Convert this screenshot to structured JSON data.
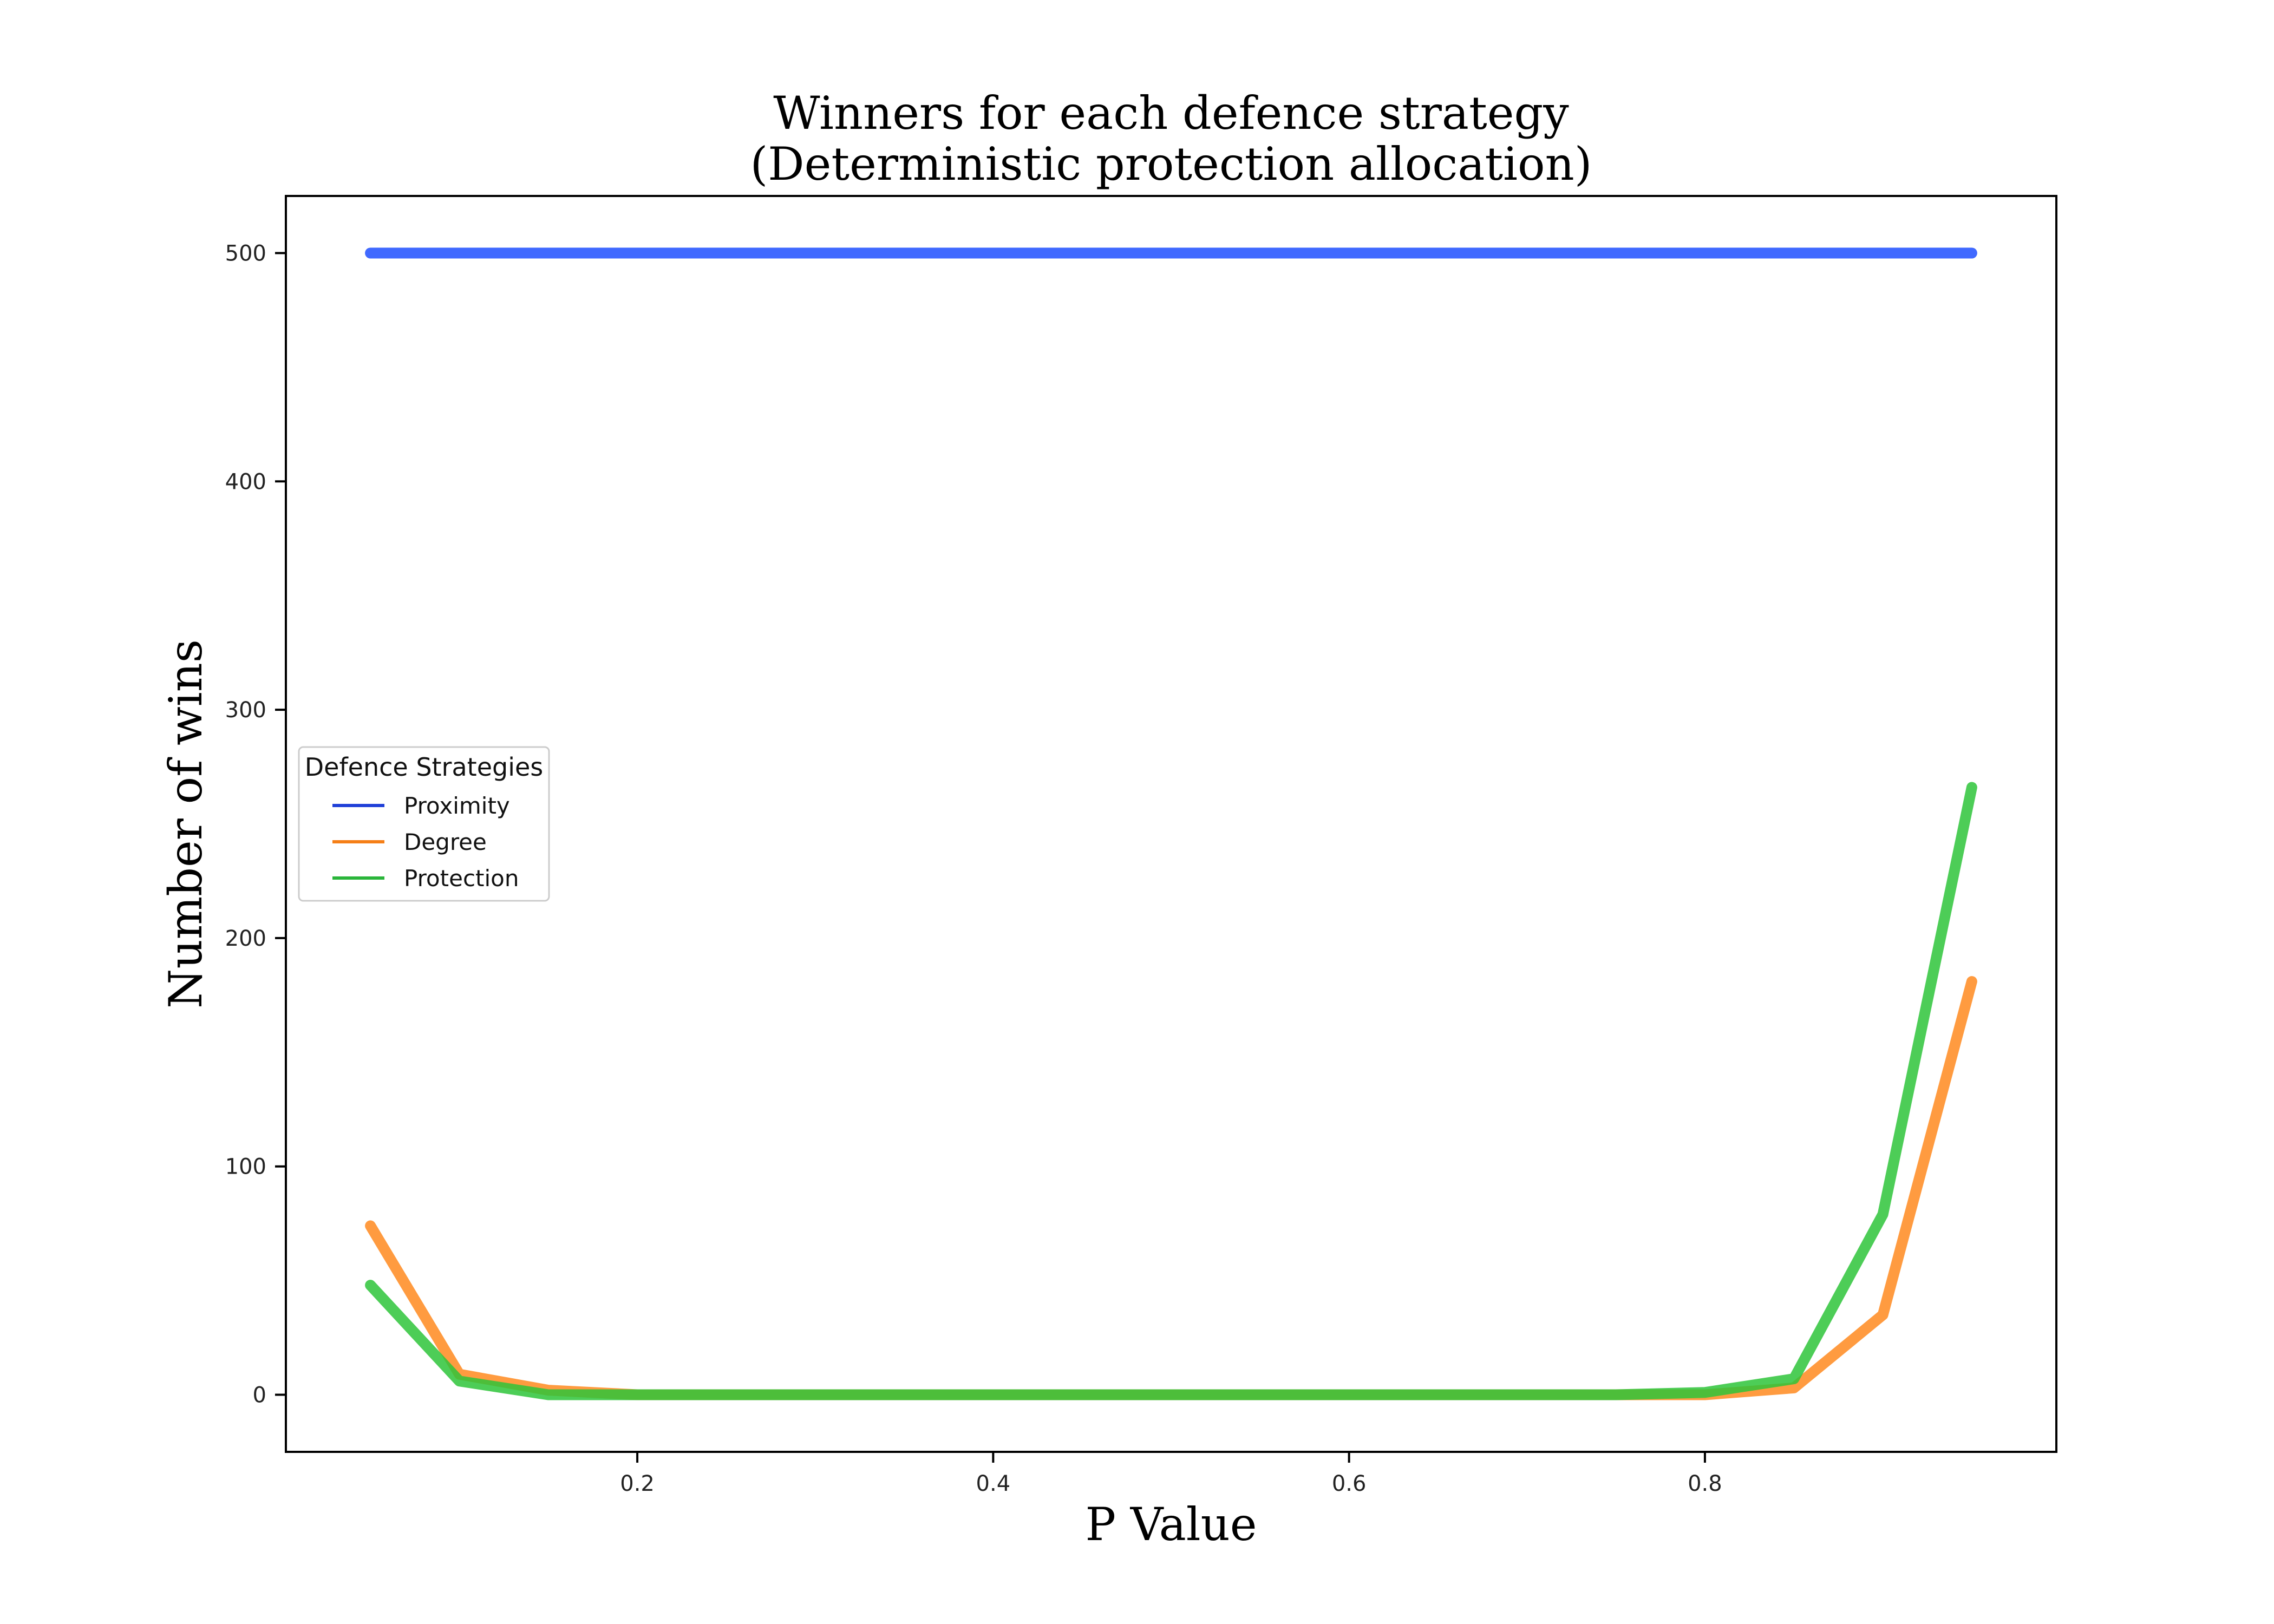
{
  "chart_data": {
    "type": "line",
    "title": [
      "Winners for each defence strategy",
      "(Deterministic protection allocation)"
    ],
    "xlabel": "P Value",
    "ylabel": "Number of wins",
    "x": [
      0.05,
      0.1,
      0.15,
      0.2,
      0.25,
      0.3,
      0.35,
      0.4,
      0.45,
      0.5,
      0.55,
      0.6,
      0.65,
      0.7,
      0.75,
      0.8,
      0.85,
      0.9,
      0.95
    ],
    "xlim": [
      0.0025,
      0.9975
    ],
    "ylim": [
      -25,
      525
    ],
    "xticks": [
      0.2,
      0.4,
      0.6,
      0.8
    ],
    "xtick_labels": [
      "0.2",
      "0.4",
      "0.6",
      "0.8"
    ],
    "yticks": [
      0,
      100,
      200,
      300,
      400,
      500
    ],
    "ytick_labels": [
      "0",
      "100",
      "200",
      "300",
      "400",
      "500"
    ],
    "grid": false,
    "legend": {
      "title": "Defence Strategies",
      "placement": "center-left"
    },
    "series": [
      {
        "name": "Proximity",
        "color": "#1f4fff",
        "legend_color": "#1f3fd8",
        "values": [
          500,
          500,
          500,
          500,
          500,
          500,
          500,
          500,
          500,
          500,
          500,
          500,
          500,
          500,
          500,
          500,
          500,
          500,
          500
        ]
      },
      {
        "name": "Degree",
        "color": "#ff8a1f",
        "legend_color": "#f57f17",
        "values": [
          74,
          9,
          2,
          0,
          0,
          0,
          0,
          0,
          0,
          0,
          0,
          0,
          0,
          0,
          0,
          0,
          3,
          35,
          181
        ]
      },
      {
        "name": "Protection",
        "color": "#2ec43a",
        "legend_color": "#2ab53a",
        "values": [
          48,
          6,
          0,
          0,
          0,
          0,
          0,
          0,
          0,
          0,
          0,
          0,
          0,
          0,
          0,
          1,
          7,
          79,
          266
        ]
      }
    ]
  }
}
